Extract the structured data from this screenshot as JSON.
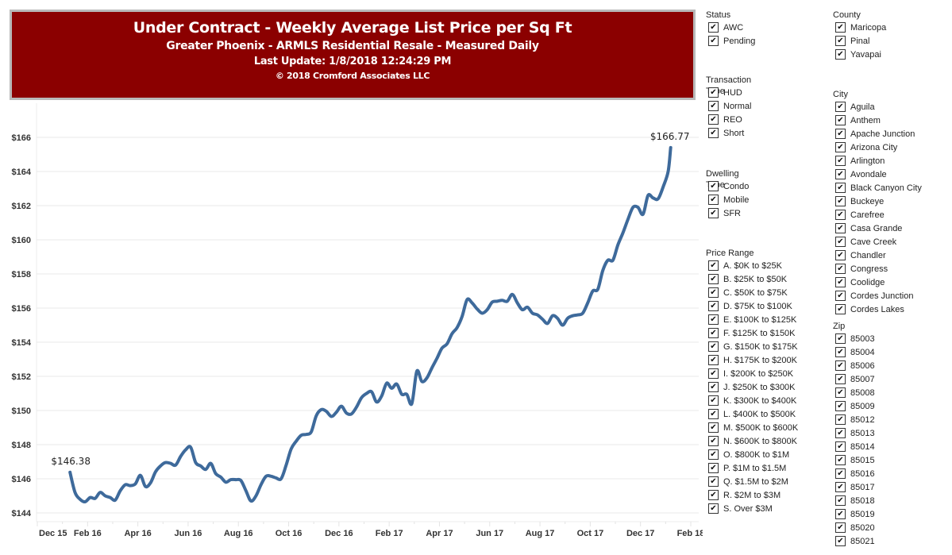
{
  "header": {
    "title": "Under Contract - Weekly Average List Price per Sq Ft",
    "subtitle": "Greater Phoenix - ARMLS Residential Resale - Measured Daily",
    "last_update": "Last Update: 1/8/2018 12:24:29 PM",
    "copyright": "© 2018 Cromford Associates LLC",
    "background_color": "#8b0000"
  },
  "chart_data": {
    "type": "line",
    "title": "Under Contract - Weekly Average List Price per Sq Ft",
    "xlabel": "",
    "ylabel": "",
    "line_color": "#3e6a9b",
    "y_ticks": [
      "$144",
      "$146",
      "$148",
      "$150",
      "$152",
      "$154",
      "$156",
      "$158",
      "$160",
      "$162",
      "$164",
      "$166"
    ],
    "ylim": [
      143.5,
      167.5
    ],
    "x_ticks": [
      "Dec 15",
      "Feb 16",
      "Apr 16",
      "Jun 16",
      "Aug 16",
      "Oct 16",
      "Dec 16",
      "Feb 17",
      "Apr 17",
      "Jun 17",
      "Aug 17",
      "Oct 17",
      "Dec 17",
      "Feb 18"
    ],
    "x_tick_months_since_dec15": [
      0,
      2,
      4,
      6,
      8,
      10,
      12,
      14,
      16,
      18,
      20,
      22,
      24,
      26
    ],
    "grid": true,
    "annotations": [
      {
        "label": "$146.38",
        "at": "start"
      },
      {
        "label": "$166.77",
        "at": "end"
      }
    ],
    "series": [
      {
        "name": "Weekly Average List Price per Sq Ft",
        "x_months_since_dec15": [
          1.3,
          1.5,
          1.7,
          1.9,
          2.1,
          2.3,
          2.5,
          2.7,
          2.9,
          3.1,
          3.3,
          3.5,
          3.7,
          3.9,
          4.1,
          4.3,
          4.5,
          4.7,
          4.9,
          5.1,
          5.3,
          5.5,
          5.7,
          5.9,
          6.1,
          6.3,
          6.5,
          6.7,
          6.9,
          7.1,
          7.3,
          7.5,
          7.7,
          7.9,
          8.1,
          8.3,
          8.5,
          8.7,
          8.9,
          9.1,
          9.3,
          9.5,
          9.7,
          9.9,
          10.1,
          10.3,
          10.5,
          10.7,
          10.9,
          11.1,
          11.3,
          11.5,
          11.7,
          11.9,
          12.1,
          12.3,
          12.5,
          12.7,
          12.9,
          13.1,
          13.3,
          13.5,
          13.7,
          13.9,
          14.1,
          14.3,
          14.5,
          14.7,
          14.9,
          15.1,
          15.3,
          15.5,
          15.7,
          15.9,
          16.1,
          16.3,
          16.5,
          16.7,
          16.9,
          17.1,
          17.3,
          17.5,
          17.7,
          17.9,
          18.1,
          18.3,
          18.5,
          18.7,
          18.9,
          19.1,
          19.3,
          19.5,
          19.7,
          19.9,
          20.1,
          20.3,
          20.5,
          20.7,
          20.9,
          21.1,
          21.3,
          21.5,
          21.7,
          21.9,
          22.1,
          22.3,
          22.5,
          22.7,
          22.9,
          23.1,
          23.3,
          23.5,
          23.7,
          23.9,
          24.1,
          24.3,
          24.5,
          24.7,
          24.9,
          25.1,
          25.2
        ],
        "values": [
          146.38,
          145.2,
          144.8,
          144.65,
          144.9,
          144.85,
          145.2,
          145.0,
          144.9,
          144.75,
          145.3,
          145.65,
          145.6,
          145.7,
          146.2,
          145.55,
          145.75,
          146.4,
          146.75,
          146.95,
          146.9,
          146.8,
          147.3,
          147.7,
          147.85,
          146.95,
          146.75,
          146.55,
          146.9,
          146.3,
          146.1,
          145.8,
          145.95,
          145.95,
          145.9,
          145.3,
          144.7,
          145.0,
          145.65,
          146.15,
          146.15,
          146.05,
          146.0,
          146.8,
          147.75,
          148.2,
          148.55,
          148.6,
          148.75,
          149.7,
          150.05,
          149.95,
          149.65,
          149.9,
          150.25,
          149.85,
          149.8,
          150.2,
          150.75,
          151.0,
          151.1,
          150.5,
          150.85,
          151.6,
          151.3,
          151.55,
          150.95,
          150.95,
          150.4,
          152.3,
          151.7,
          151.9,
          152.5,
          153.05,
          153.65,
          153.9,
          154.5,
          154.85,
          155.5,
          156.5,
          156.3,
          155.95,
          155.7,
          155.9,
          156.35,
          156.4,
          156.45,
          156.4,
          156.8,
          156.3,
          155.9,
          156.05,
          155.7,
          155.6,
          155.35,
          155.1,
          155.55,
          155.4,
          155.0,
          155.4,
          155.55,
          155.6,
          155.7,
          156.3,
          157.0,
          157.1,
          158.2,
          158.8,
          158.8,
          159.7,
          160.4,
          161.2,
          161.9,
          161.9,
          161.5,
          162.6,
          162.45,
          162.4,
          163.1,
          164.0,
          165.4,
          165.8,
          166.77
        ]
      }
    ]
  },
  "filters": {
    "status": {
      "title": "Status",
      "items": [
        "AWC",
        "Pending"
      ]
    },
    "transaction_type": {
      "title": "Transaction Type",
      "items": [
        "HUD",
        "Normal",
        "REO",
        "Short"
      ]
    },
    "dwelling_type": {
      "title": "Dwelling Type",
      "items": [
        "Condo",
        "Mobile",
        "SFR"
      ]
    },
    "price_range": {
      "title": "Price Range",
      "items": [
        "A. $0K to $25K",
        "B. $25K to $50K",
        "C. $50K to $75K",
        "D. $75K to $100K",
        "E. $100K to $125K",
        "F. $125K to $150K",
        "G. $150K to $175K",
        "H. $175K to $200K",
        "I. $200K to $250K",
        "J. $250K to $300K",
        "K. $300K to $400K",
        "L. $400K to $500K",
        "M. $500K to $600K",
        "N. $600K to $800K",
        "O. $800K to $1M",
        "P. $1M to $1.5M",
        "Q. $1.5M to $2M",
        "R. $2M to $3M",
        "S. Over $3M"
      ]
    },
    "county": {
      "title": "County",
      "items": [
        "Maricopa",
        "Pinal",
        "Yavapai"
      ]
    },
    "city": {
      "title": "City",
      "items": [
        "Aguila",
        "Anthem",
        "Apache Junction",
        "Arizona City",
        "Arlington",
        "Avondale",
        "Black Canyon City",
        "Buckeye",
        "Carefree",
        "Casa Grande",
        "Cave Creek",
        "Chandler",
        "Congress",
        "Coolidge",
        "Cordes Junction",
        "Cordes Lakes"
      ]
    },
    "zip": {
      "title": "Zip",
      "items": [
        "85003",
        "85004",
        "85006",
        "85007",
        "85008",
        "85009",
        "85012",
        "85013",
        "85014",
        "85015",
        "85016",
        "85017",
        "85018",
        "85019",
        "85020",
        "85021"
      ]
    },
    "checkbox_glyph": "✔"
  }
}
